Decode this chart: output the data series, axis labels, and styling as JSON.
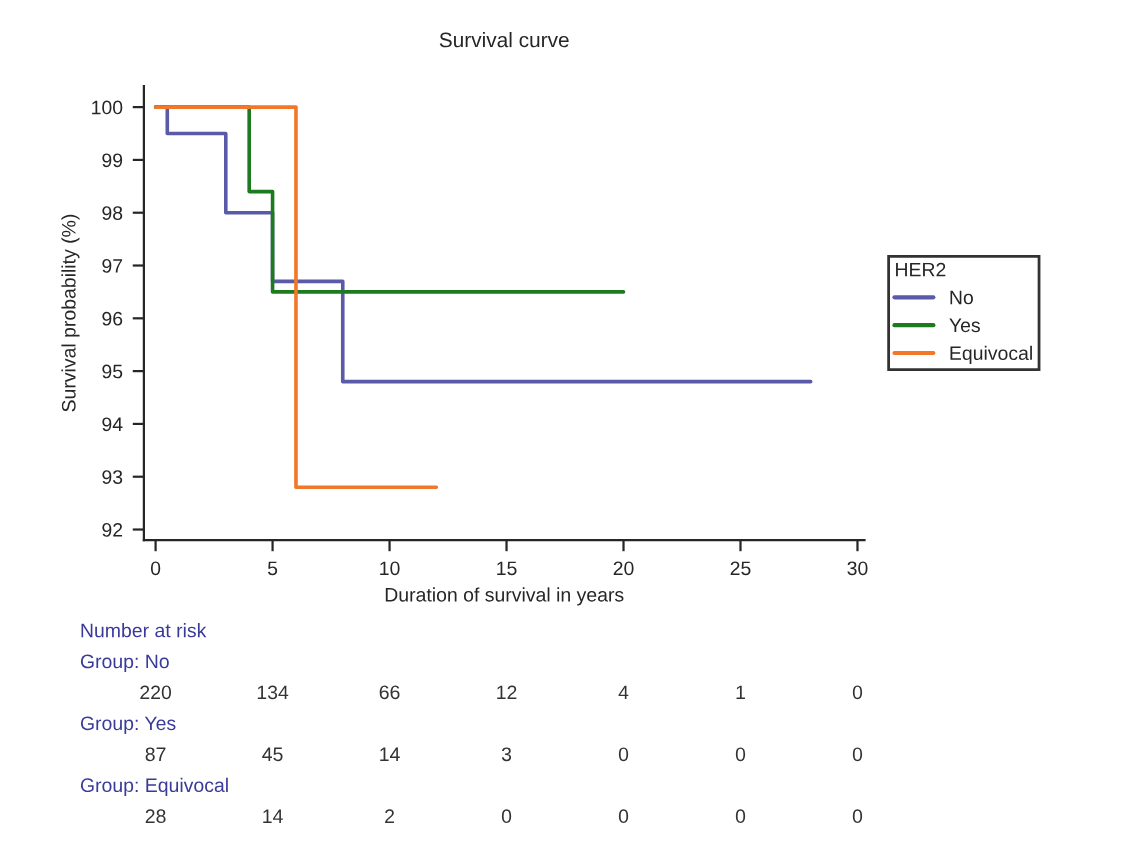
{
  "chart_data": {
    "type": "step",
    "title": "Survival curve",
    "xlabel": "Duration of survival in years",
    "ylabel": "Survival probability (%)",
    "legend_title": "HER2",
    "series": [
      {
        "name": "No",
        "color": "#5a5aa8",
        "x": [
          0,
          0.5,
          3,
          5,
          8,
          28
        ],
        "values": [
          100,
          99.5,
          98,
          96.7,
          94.8,
          94.8
        ]
      },
      {
        "name": "Yes",
        "color": "#1e7a1e",
        "x": [
          0,
          4,
          5,
          20
        ],
        "values": [
          100,
          98.4,
          96.5,
          96.5
        ]
      },
      {
        "name": "Equivocal",
        "color": "#f07828",
        "x": [
          0,
          6,
          12
        ],
        "values": [
          100,
          92.8,
          92.8
        ]
      }
    ],
    "xlim": [
      -0.5,
      30.3
    ],
    "ylim": [
      91.8,
      100.4
    ],
    "xticks": [
      0,
      5,
      10,
      15,
      20,
      25,
      30
    ],
    "yticks": [
      92,
      93,
      94,
      95,
      96,
      97,
      98,
      99,
      100
    ],
    "grid": false,
    "legend": "right",
    "line_style": "solid",
    "annotations": [
      "Number at risk",
      "Group: No",
      "220",
      "134",
      "66",
      "12",
      "4",
      "1",
      "0",
      "Group: Yes",
      "87",
      "45",
      "14",
      "3",
      "0",
      "0",
      "0",
      "Group: Equivocal",
      "28",
      "14",
      "2",
      "0",
      "0",
      "0",
      "0"
    ]
  }
}
